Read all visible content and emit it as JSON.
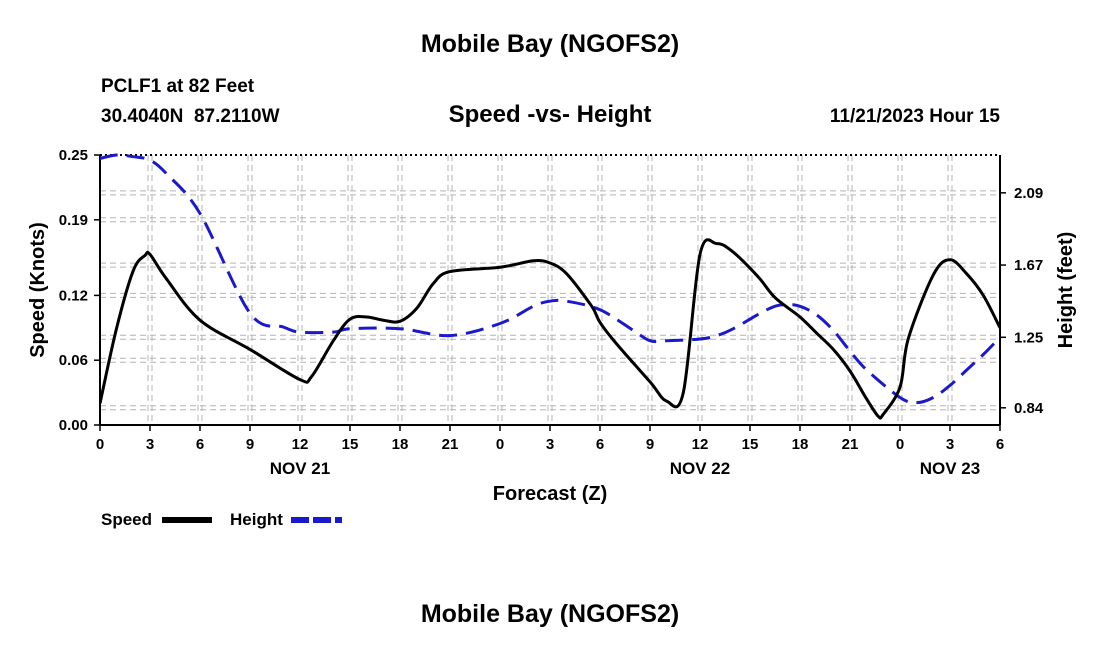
{
  "page": {
    "title": "Mobile Bay (NGOFS2)",
    "footer_title": "Mobile Bay (NGOFS2)",
    "station": "PCLF1 at 82 Feet",
    "coords": "30.4040N  87.2110W",
    "chart_title": "Speed -vs- Height",
    "timestamp": "11/21/2023 Hour 15"
  },
  "colors": {
    "speed": "#000000",
    "height": "#1a1acc",
    "grid": "#b4b4b4"
  },
  "chart_data": {
    "type": "line",
    "title": "Speed -vs- Height",
    "xlabel": "Forecast (Z)",
    "ylabel": "Speed (Knots)",
    "ylabel_right": "Height (feet)",
    "xlim": [
      0,
      54
    ],
    "ylim": [
      0,
      0.25
    ],
    "ylim_right": [
      0.74,
      2.31
    ],
    "x_ticks": [
      0,
      3,
      6,
      9,
      12,
      15,
      18,
      21,
      24,
      27,
      30,
      33,
      36,
      39,
      42,
      45,
      48,
      51,
      54
    ],
    "x_tick_labels": [
      "0",
      "3",
      "6",
      "9",
      "12",
      "15",
      "18",
      "21",
      "0",
      "3",
      "6",
      "9",
      "12",
      "15",
      "18",
      "21",
      "0",
      "3",
      "6"
    ],
    "y_ticks": [
      0.0,
      0.06,
      0.12,
      0.19,
      0.25
    ],
    "y_tick_labels": [
      "0.00",
      "0.06",
      "0.12",
      "0.19",
      "0.25"
    ],
    "y_right_ticks": [
      0.84,
      1.25,
      1.67,
      2.09
    ],
    "y_right_tick_labels": [
      "0.84",
      "1.25",
      "1.67",
      "2.09"
    ],
    "date_labels": [
      {
        "x": 12,
        "label": "NOV 21"
      },
      {
        "x": 36,
        "label": "NOV 22"
      },
      {
        "x": 51,
        "label": "NOV 23"
      }
    ],
    "grid": true,
    "series": [
      {
        "name": "Speed",
        "axis": "left",
        "x": [
          0,
          1,
          2,
          2.7,
          3,
          4,
          6,
          9,
          12,
          12.7,
          14,
          15,
          16,
          17,
          18,
          19,
          20,
          21,
          24,
          26,
          27,
          28,
          29.5,
          30,
          31,
          33,
          34,
          35,
          36,
          37,
          38,
          39.5,
          40.5,
          42,
          43,
          44,
          45,
          46,
          46.7,
          47,
          48,
          48.5,
          50,
          51,
          52,
          53,
          54
        ],
        "values": [
          0.02,
          0.09,
          0.143,
          0.157,
          0.158,
          0.135,
          0.097,
          0.07,
          0.042,
          0.045,
          0.078,
          0.098,
          0.1,
          0.097,
          0.096,
          0.108,
          0.131,
          0.142,
          0.146,
          0.152,
          0.15,
          0.14,
          0.11,
          0.095,
          0.075,
          0.04,
          0.022,
          0.03,
          0.158,
          0.168,
          0.16,
          0.137,
          0.118,
          0.1,
          0.085,
          0.07,
          0.05,
          0.024,
          0.008,
          0.01,
          0.035,
          0.08,
          0.139,
          0.153,
          0.14,
          0.12,
          0.09
        ]
      },
      {
        "name": "Height",
        "axis": "right",
        "x": [
          0,
          1,
          2,
          3,
          4,
          6,
          9,
          11,
          12,
          14,
          15,
          18,
          21,
          24,
          26,
          27,
          28,
          30,
          32,
          33,
          34,
          36,
          37,
          38,
          40,
          41,
          42,
          43,
          44,
          45,
          46,
          48,
          49,
          50,
          51,
          52,
          53,
          54
        ],
        "values": [
          2.29,
          2.31,
          2.3,
          2.28,
          2.2,
          1.97,
          1.39,
          1.31,
          1.28,
          1.28,
          1.3,
          1.3,
          1.26,
          1.33,
          1.43,
          1.46,
          1.46,
          1.41,
          1.29,
          1.23,
          1.23,
          1.24,
          1.26,
          1.3,
          1.41,
          1.44,
          1.43,
          1.38,
          1.29,
          1.17,
          1.06,
          0.9,
          0.87,
          0.9,
          0.97,
          1.06,
          1.15,
          1.25
        ]
      }
    ],
    "legend": [
      {
        "name": "Speed",
        "style": "solid"
      },
      {
        "name": "Height",
        "style": "dashed"
      }
    ],
    "legend_position": "bottom-left"
  }
}
